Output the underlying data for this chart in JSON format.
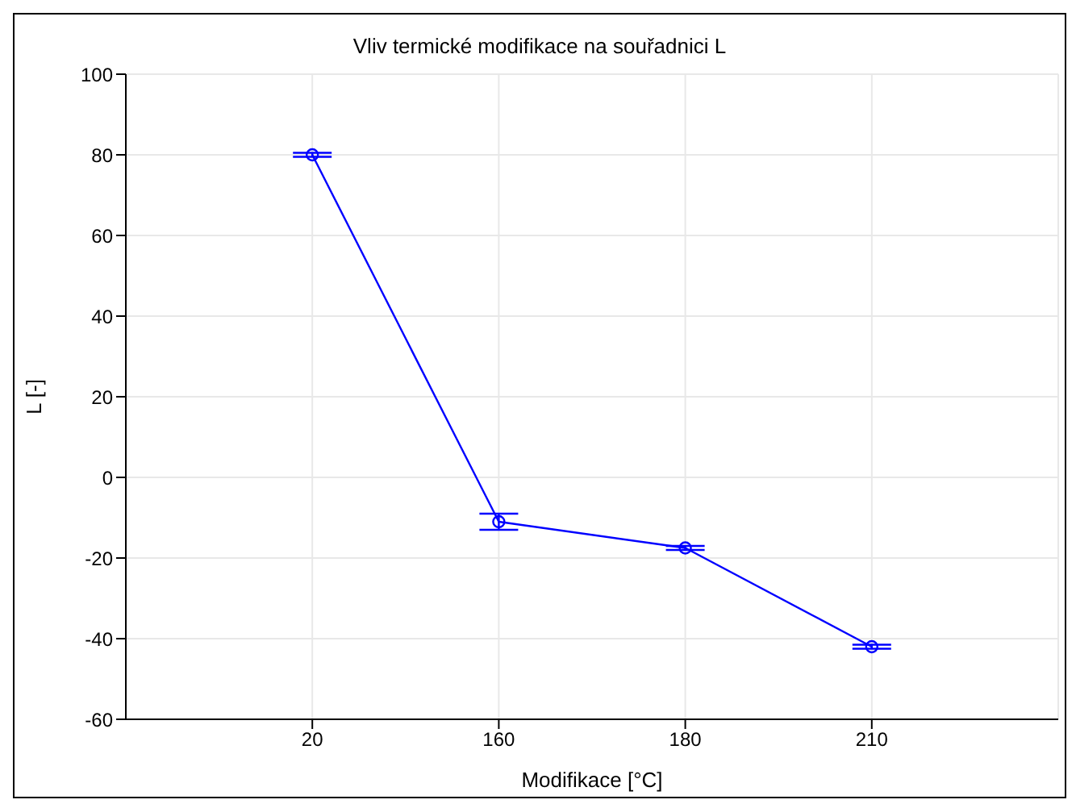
{
  "chart_data": {
    "type": "line",
    "title": "Vliv termické modifikace na souřadnici L",
    "xlabel": "Modifikace [°C]",
    "ylabel": "L [-]",
    "categories": [
      "20",
      "160",
      "180",
      "210"
    ],
    "series": [
      {
        "color": "#0000ff",
        "values": [
          80,
          -11,
          -17.5,
          -42
        ],
        "errors": [
          0.5,
          2,
          0.5,
          0.5
        ]
      }
    ],
    "ylim": [
      -60,
      100
    ],
    "yticks": [
      -60,
      -40,
      -20,
      0,
      20,
      40,
      60,
      80,
      100
    ],
    "grid": true,
    "marker": "circle",
    "line_style": "solid",
    "legend": false
  }
}
